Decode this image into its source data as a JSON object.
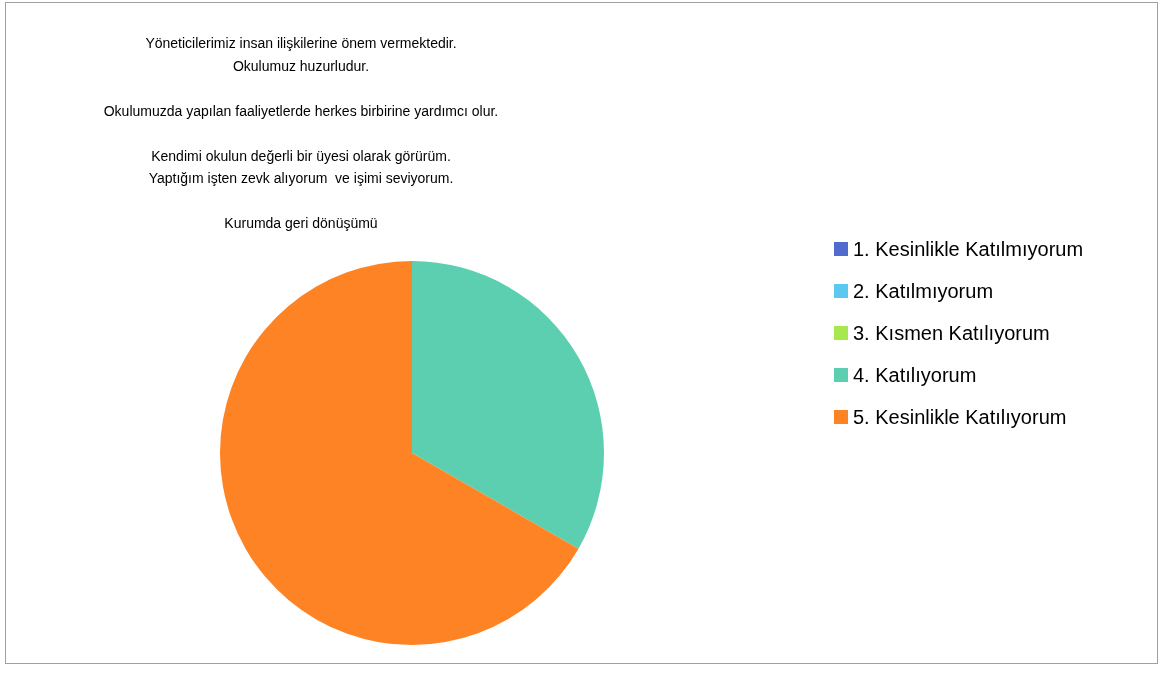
{
  "chart_data": {
    "type": "pie",
    "title": "Yöneticilerimiz insan ilişkilerine önem vermektedir.\nOkulumuz huzurludur.\n\nOkulumuzda yapılan faaliyetlerde herkes birbirine yardımcı olur.\n\nKendimi okulun değerli bir üyesi olarak görürüm.\nYaptığım işten zevk alıyorum  ve işimi seviyorum.\n\nKurumda geri dönüşümü",
    "categories": [
      "1. Kesinlikle Katılmıyorum",
      "2. Katılmıyorum",
      "3. Kısmen Katılıyorum",
      "4. Katılıyorum",
      "5. Kesinlikle Katılıyorum"
    ],
    "values": [
      0,
      0,
      0,
      33.3,
      66.7
    ],
    "colors": [
      "#4e6bcd",
      "#5bc8ef",
      "#a6e84e",
      "#5dcfb1",
      "#fe8325"
    ],
    "legend": "right"
  }
}
